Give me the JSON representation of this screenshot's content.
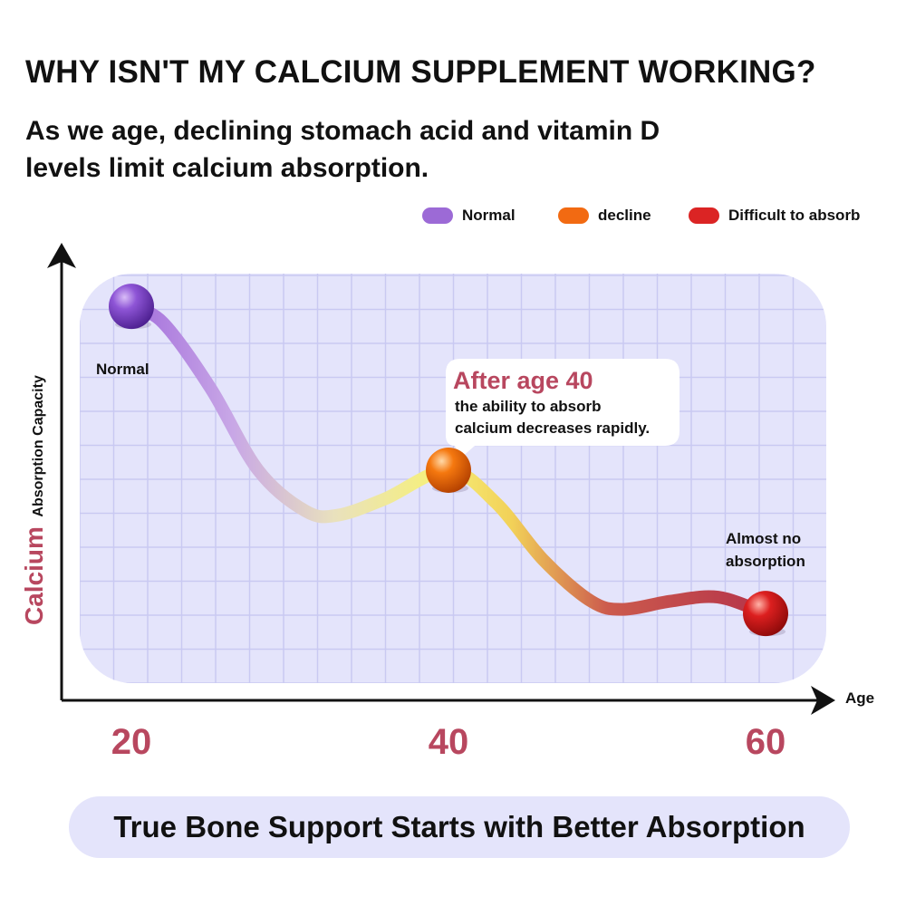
{
  "header": {
    "title": "WHY ISN'T MY CALCIUM SUPPLEMENT WORKING?",
    "subtitle_line1": "As we age, declining stomach acid and vitamin D",
    "subtitle_line2": "levels limit calcium absorption."
  },
  "legend": [
    {
      "label": "Normal",
      "color": "#9c6ad6"
    },
    {
      "label": "decline",
      "color": "#f26a12"
    },
    {
      "label": "Difficult to absorb",
      "color": "#db2424"
    }
  ],
  "chart_data": {
    "type": "line",
    "ylabel_accent": "Calcium",
    "ylabel": "Absorption Capacity",
    "xlabel": "Age",
    "x_ticks": [
      "20",
      "40",
      "60"
    ],
    "xlim": [
      20,
      60
    ],
    "points": [
      {
        "age": 20,
        "level": 0.92,
        "label": "Normal",
        "color": "#8a4fd2"
      },
      {
        "age": 40,
        "level": 0.52,
        "label": "",
        "color": "#f2740f"
      },
      {
        "age": 60,
        "level": 0.17,
        "label_line1": "Almost no",
        "label_line2": "absorption",
        "color": "#d81c1c"
      }
    ],
    "curve": [
      {
        "age": 20,
        "level": 0.92
      },
      {
        "age": 22,
        "level": 0.88
      },
      {
        "age": 25,
        "level": 0.72
      },
      {
        "age": 28,
        "level": 0.52
      },
      {
        "age": 31,
        "level": 0.42
      },
      {
        "age": 33,
        "level": 0.41
      },
      {
        "age": 36,
        "level": 0.45
      },
      {
        "age": 40,
        "level": 0.52
      },
      {
        "age": 43,
        "level": 0.44
      },
      {
        "age": 46,
        "level": 0.3
      },
      {
        "age": 49,
        "level": 0.2
      },
      {
        "age": 51,
        "level": 0.18
      },
      {
        "age": 54,
        "level": 0.2
      },
      {
        "age": 57,
        "level": 0.21
      },
      {
        "age": 60,
        "level": 0.17
      }
    ],
    "callout": {
      "title": "After age 40",
      "line1": "the ability to absorb",
      "line2": "calcium decreases rapidly."
    },
    "grid": true,
    "colors": {
      "accent": "#b8475f",
      "panel": "#e4e4fb",
      "grid": "#c9c9f2"
    }
  },
  "footer": {
    "text": "True Bone Support Starts with Better Absorption"
  }
}
